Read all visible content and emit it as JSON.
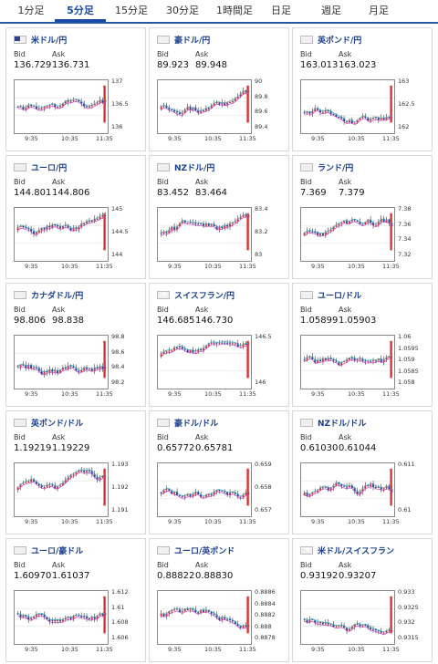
{
  "tabs": [
    "1分足",
    "5分足",
    "15分足",
    "30分足",
    "1時間足",
    "日足",
    "週足",
    "月足"
  ],
  "active_tab": 1,
  "bid_label": "Bid",
  "ask_label": "Ask",
  "time_labels": [
    "9:35",
    "10:35",
    "11:35"
  ],
  "cards": [
    {
      "title": "米ドル/円",
      "flag": "us",
      "bid": "136.729",
      "ask": "136.731",
      "yticks": [
        "137",
        "136.5",
        "136"
      ]
    },
    {
      "title": "豪ドル/円",
      "flag": "au",
      "bid": "89.923",
      "ask": "89.948",
      "yticks": [
        "90",
        "89.8",
        "89.6",
        "89.4"
      ]
    },
    {
      "title": "英ポンド/円",
      "flag": "gb",
      "bid": "163.013",
      "ask": "163.023",
      "yticks": [
        "163",
        "162.5",
        "162"
      ]
    },
    {
      "title": "ユーロ/円",
      "flag": "eu",
      "bid": "144.801",
      "ask": "144.806",
      "yticks": [
        "145",
        "144.5",
        "144"
      ]
    },
    {
      "title": "NZドル/円",
      "flag": "nz",
      "bid": "83.452",
      "ask": "83.464",
      "yticks": [
        "83.4",
        "83.2",
        "83"
      ]
    },
    {
      "title": "ランド/円",
      "flag": "za",
      "bid": "7.369",
      "ask": "7.379",
      "yticks": [
        "7.38",
        "7.36",
        "7.34",
        "7.32"
      ]
    },
    {
      "title": "カナダドル/円",
      "flag": "ca",
      "bid": "98.806",
      "ask": "98.838",
      "yticks": [
        "98.8",
        "98.6",
        "98.4",
        "98.2"
      ]
    },
    {
      "title": "スイスフラン/円",
      "flag": "ch",
      "bid": "146.685",
      "ask": "146.730",
      "yticks": [
        "146.5",
        "146"
      ]
    },
    {
      "title": "ユーロ/ドル",
      "flag": "eu",
      "bid": "1.05899",
      "ask": "1.05903",
      "yticks": [
        "1.06",
        "1.0595",
        "1.059",
        "1.0585",
        "1.058"
      ]
    },
    {
      "title": "英ポンド/ドル",
      "flag": "gb",
      "bid": "1.19219",
      "ask": "1.19229",
      "yticks": [
        "1.193",
        "1.192",
        "1.191"
      ]
    },
    {
      "title": "豪ドル/ドル",
      "flag": "au",
      "bid": "0.65772",
      "ask": "0.65781",
      "yticks": [
        "0.659",
        "0.658",
        "0.657"
      ]
    },
    {
      "title": "NZドル/ドル",
      "flag": "nz",
      "bid": "0.61030",
      "ask": "0.61044",
      "yticks": [
        "0.611",
        "0.61"
      ]
    },
    {
      "title": "ユーロ/豪ドル",
      "flag": "eu",
      "bid": "1.60970",
      "ask": "1.61037",
      "yticks": [
        "1.612",
        "1.61",
        "1.608",
        "1.606"
      ]
    },
    {
      "title": "ユーロ/英ポンド",
      "flag": "eu",
      "bid": "0.88822",
      "ask": "0.88830",
      "yticks": [
        "0.8886",
        "0.8884",
        "0.8882",
        "0.888",
        "0.8878"
      ]
    },
    {
      "title": "米ドル/スイスフラン",
      "flag": "ch",
      "bid": "0.93192",
      "ask": "0.93207",
      "yticks": [
        "0.933",
        "0.9325",
        "0.932",
        "0.9315"
      ]
    }
  ]
}
